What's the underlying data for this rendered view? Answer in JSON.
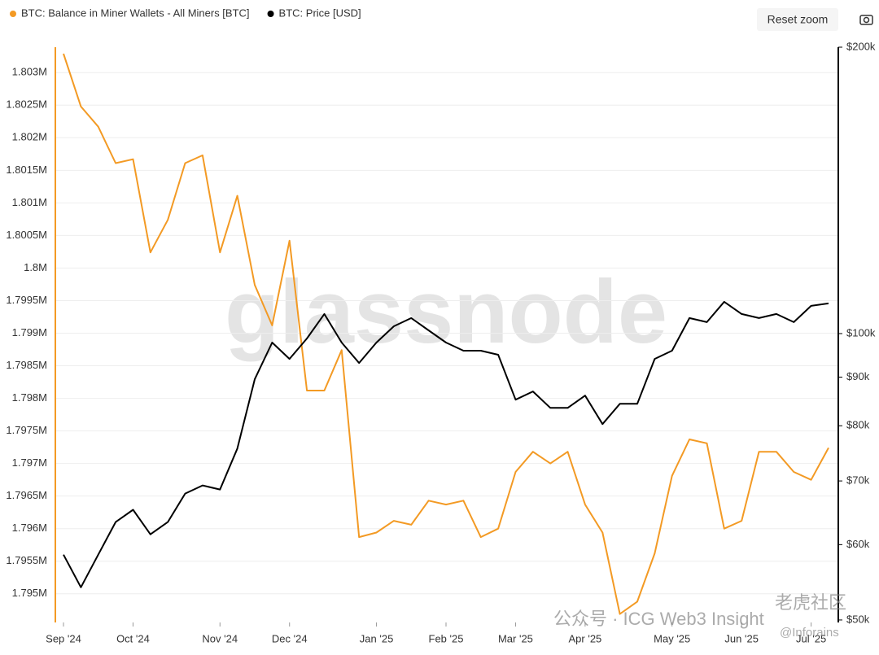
{
  "chart_data": {
    "type": "line",
    "watermark": "glassnode",
    "button": "Reset zoom",
    "overlay_texts": [
      "公众号 · ICG Web3 Insight",
      "老虎社区",
      "@Inforains"
    ],
    "categories": [
      "Sep '24",
      null,
      null,
      null,
      "Oct '24",
      null,
      null,
      null,
      null,
      "Nov '24",
      null,
      null,
      null,
      "Dec '24",
      null,
      null,
      null,
      null,
      "Jan '25",
      null,
      null,
      null,
      "Feb '25",
      null,
      null,
      null,
      "Mar '25",
      null,
      null,
      null,
      "Apr '25",
      null,
      null,
      null,
      null,
      "May '25",
      null,
      null,
      null,
      "Jun '25",
      null,
      null,
      null,
      "Jul '25",
      null
    ],
    "series": [
      {
        "name": "BTC: Balance in Miner Wallets - All Miners [BTC]",
        "color": "#f39a24",
        "axis": "y",
        "values": [
          1803290,
          1802480,
          1802170,
          1801610,
          1801670,
          1800240,
          1800740,
          1801610,
          1801730,
          1800240,
          1801110,
          1799740,
          1799120,
          1800420,
          1798120,
          1798120,
          1798740,
          1795870,
          1795940,
          1796120,
          1796060,
          1796430,
          1796370,
          1796430,
          1795870,
          1796000,
          1796870,
          1797180,
          1797000,
          1797180,
          1796370,
          1795940,
          1794690,
          1794880,
          1795620,
          1796810,
          1797370,
          1797310,
          1796000,
          1796120,
          1797180,
          1797180,
          1796870,
          1796750,
          1797240
        ]
      },
      {
        "name": "BTC: Price [USD]",
        "color": "#000000",
        "axis": "y2",
        "values": [
          58560,
          54110,
          58560,
          63370,
          65280,
          61520,
          63370,
          67900,
          69250,
          68570,
          75700,
          89530,
          97850,
          94060,
          98820,
          104860,
          97850,
          93140,
          97850,
          101790,
          103820,
          100790,
          97850,
          95940,
          95940,
          95000,
          85220,
          86930,
          83540,
          83540,
          86060,
          80330,
          84370,
          84370,
          94060,
          95940,
          103820,
          102810,
          108000,
          104860,
          103820,
          104860,
          102810,
          106940,
          107580
        ]
      }
    ],
    "ylim": [
      1794560,
      1803390
    ],
    "yticks": [
      {
        "value": 1795000,
        "label": "1.795M"
      },
      {
        "value": 1795500,
        "label": "1.7955M"
      },
      {
        "value": 1796000,
        "label": "1.796M"
      },
      {
        "value": 1796500,
        "label": "1.7965M"
      },
      {
        "value": 1797000,
        "label": "1.797M"
      },
      {
        "value": 1797500,
        "label": "1.7975M"
      },
      {
        "value": 1798000,
        "label": "1.798M"
      },
      {
        "value": 1798500,
        "label": "1.7985M"
      },
      {
        "value": 1799000,
        "label": "1.799M"
      },
      {
        "value": 1799500,
        "label": "1.7995M"
      },
      {
        "value": 1800000,
        "label": "1.8M"
      },
      {
        "value": 1800500,
        "label": "1.8005M"
      },
      {
        "value": 1801000,
        "label": "1.801M"
      },
      {
        "value": 1801500,
        "label": "1.8015M"
      },
      {
        "value": 1802000,
        "label": "1.802M"
      },
      {
        "value": 1802500,
        "label": "1.8025M"
      },
      {
        "value": 1803000,
        "label": "1.803M"
      }
    ],
    "y2lim": [
      49700,
      200000
    ],
    "y2log": true,
    "y2ticks": [
      {
        "value": 50000,
        "label": "$50k"
      },
      {
        "value": 60000,
        "label": "$60k"
      },
      {
        "value": 70000,
        "label": "$70k"
      },
      {
        "value": 80000,
        "label": "$80k"
      },
      {
        "value": 90000,
        "label": "$90k"
      },
      {
        "value": 100000,
        "label": "$100k"
      },
      {
        "value": 200000,
        "label": "$200k"
      }
    ],
    "grid": true,
    "legend": "top-left"
  }
}
